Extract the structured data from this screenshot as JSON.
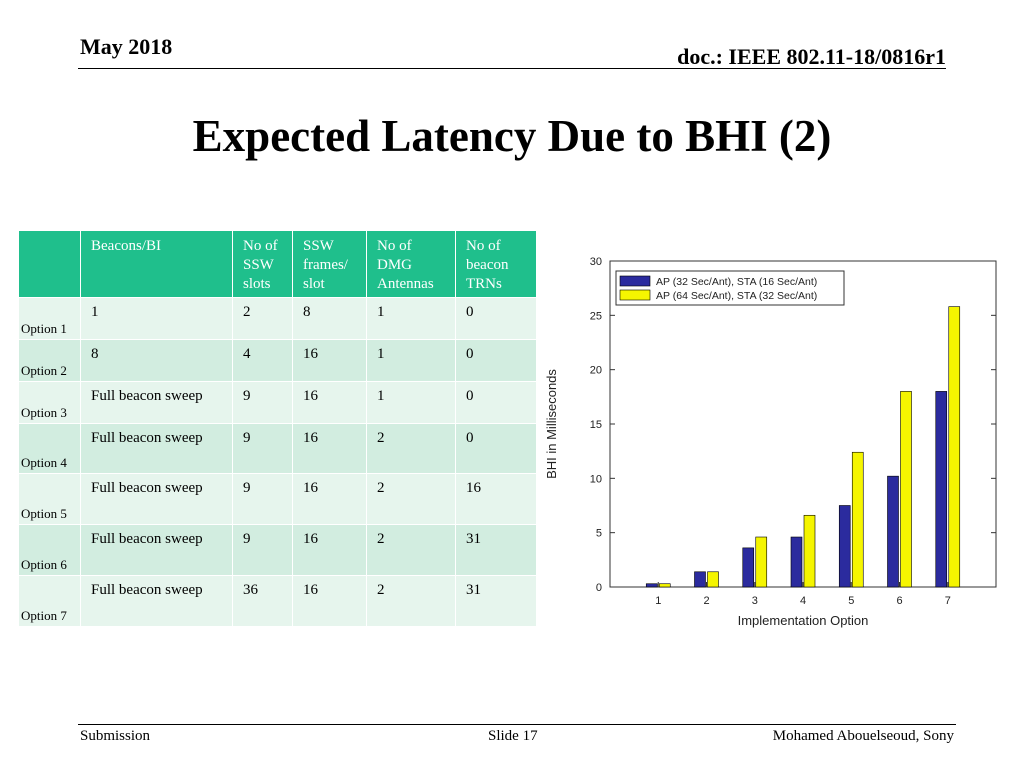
{
  "header": {
    "date": "May 2018",
    "doc": "doc.: IEEE 802.11-18/0816r1"
  },
  "title": "Expected Latency Due to BHI (2)",
  "table": {
    "columns": [
      "",
      "Beacons/BI",
      "No of SSW slots",
      "SSW frames/ slot",
      "No of DMG Antennas",
      "No of beacon TRNs"
    ],
    "rows": [
      {
        "option": "Option 1",
        "beacons": "1",
        "slots": "2",
        "frames": "8",
        "antennas": "1",
        "trns": "0"
      },
      {
        "option": "Option 2",
        "beacons": "8",
        "slots": "4",
        "frames": "16",
        "antennas": "1",
        "trns": "0"
      },
      {
        "option": "Option 3",
        "beacons": "Full beacon sweep",
        "slots": "9",
        "frames": "16",
        "antennas": "1",
        "trns": "0"
      },
      {
        "option": "Option 4",
        "beacons": "Full beacon sweep",
        "slots": "9",
        "frames": "16",
        "antennas": "2",
        "trns": "0"
      },
      {
        "option": "Option 5",
        "beacons": "Full beacon sweep",
        "slots": "9",
        "frames": "16",
        "antennas": "2",
        "trns": "16"
      },
      {
        "option": "Option 6",
        "beacons": "Full beacon sweep",
        "slots": "9",
        "frames": "16",
        "antennas": "2",
        "trns": "31"
      },
      {
        "option": "Option 7",
        "beacons": "Full beacon sweep",
        "slots": "36",
        "frames": "16",
        "antennas": "2",
        "trns": "31"
      }
    ]
  },
  "chart_data": {
    "type": "bar",
    "categories": [
      "1",
      "2",
      "3",
      "4",
      "5",
      "6",
      "7"
    ],
    "series": [
      {
        "name": "AP (32 Sec/Ant), STA (16 Sec/Ant)",
        "values": [
          0.3,
          1.4,
          3.6,
          4.6,
          7.5,
          10.2,
          18.0
        ],
        "color": "#2b2b9e"
      },
      {
        "name": "AP (64 Sec/Ant), STA (32 Sec/Ant)",
        "values": [
          0.3,
          1.4,
          4.6,
          6.6,
          12.4,
          18.0,
          25.8
        ],
        "color": "#f5f500"
      }
    ],
    "xlabel": "Implementation Option",
    "ylabel": "BHI in Milliseconds",
    "ylim": [
      0,
      30
    ],
    "yticks": [
      0,
      5,
      10,
      15,
      20,
      25,
      30
    ],
    "legend": "top-left",
    "grid": false
  },
  "footer": {
    "left": "Submission",
    "center": "Slide 17",
    "right": "Mohamed Abouelseoud, Sony"
  }
}
